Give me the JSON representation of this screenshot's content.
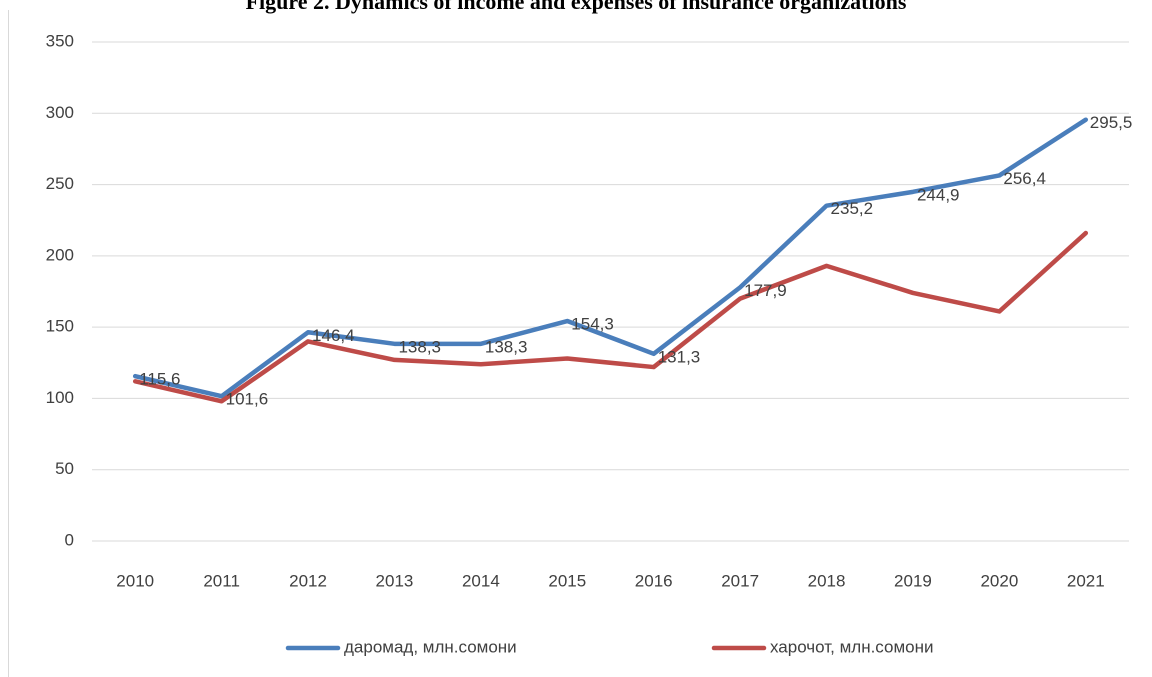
{
  "chart_data": {
    "type": "line",
    "title": "Figure 2. Dynamics of income and expenses of insurance organizations",
    "categories": [
      "2010",
      "2011",
      "2012",
      "2013",
      "2014",
      "2015",
      "2016",
      "2017",
      "2018",
      "2019",
      "2020",
      "2021"
    ],
    "series": [
      {
        "name": "даромад, млн.сомони",
        "color": "#4a7ebb",
        "values": [
          115.6,
          101.6,
          146.4,
          138.3,
          138.3,
          154.3,
          131.3,
          177.9,
          235.2,
          244.9,
          256.4,
          295.5
        ],
        "value_labels": [
          "115,6",
          "101,6",
          "146,4",
          "138,3",
          "138,3",
          "154,3",
          "131,3",
          "177,9",
          "235,2",
          "244,9",
          "256,4",
          "295,5"
        ]
      },
      {
        "name": "харочот, млн.сомони",
        "color": "#be4b48",
        "values": [
          112,
          98,
          140,
          127,
          124,
          128,
          122,
          170,
          193,
          174,
          161,
          216
        ]
      }
    ],
    "ylim": [
      0,
      350
    ],
    "yticks": [
      0,
      50,
      100,
      150,
      200,
      250,
      300,
      350
    ],
    "grid": true,
    "legend": "bottom"
  }
}
